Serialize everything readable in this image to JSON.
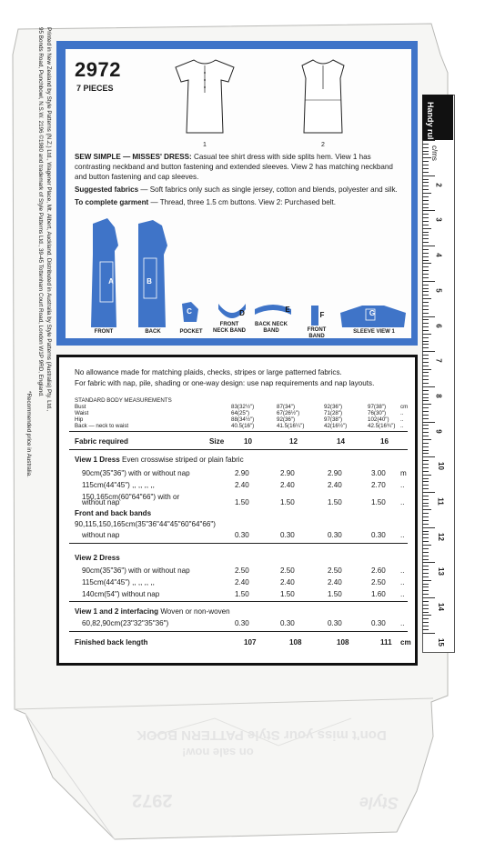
{
  "pattern": {
    "number": "2972",
    "pieces": "7 PIECES"
  },
  "sketches": {
    "view1": "1",
    "view2": "2"
  },
  "description": {
    "heading": "SEW SIMPLE — MISSES' DRESS:",
    "text": "Casual tee shirt dress with side splits hem. View 1 has contrasting neckband and button fastening and extended sleeves. View 2 has matching neckband and button fastening and cap sleeves.",
    "fabrics_label": "Suggested fabrics",
    "fabrics_text": "— Soft fabrics only such as single jersey, cotton and blends, polyester and silk.",
    "garment_label": "To complete garment",
    "garment_text": "— Thread, three 1.5 cm buttons. View 2: Purchased belt."
  },
  "pieces": [
    {
      "letter": "A",
      "label": "FRONT"
    },
    {
      "letter": "B",
      "label": "BACK"
    },
    {
      "letter": "C",
      "label": "POCKET"
    },
    {
      "letter": "D",
      "label": "FRONT NECK BAND"
    },
    {
      "letter": "E",
      "label": "BACK NECK BAND"
    },
    {
      "letter": "F",
      "label": "FRONT BAND"
    },
    {
      "letter": "G",
      "label": "SLEEVE VIEW 1"
    }
  ],
  "notes": {
    "line1": "No allowance made for matching plaids, checks, stripes or large patterned fabrics.",
    "line2": "For fabric with nap, pile, shading or one-way design: use nap requirements and nap layouts."
  },
  "measurements": {
    "heading": "STANDARD BODY MEASUREMENTS",
    "rows": [
      {
        "label": "Bust",
        "values": [
          "83(32½\")",
          "87(34\")",
          "92(36\")",
          "97(38\")"
        ],
        "unit": "cm"
      },
      {
        "label": "Waist",
        "values": [
          "64(25\")",
          "67(26½\")",
          "71(28\")",
          "76(30\")"
        ],
        "unit": ".."
      },
      {
        "label": "Hip",
        "values": [
          "88(34½\")",
          "92(36\")",
          "97(38\")",
          "102(40\")"
        ],
        "unit": ".."
      },
      {
        "label": "Back — neck to waist",
        "values": [
          "40.5(16\")",
          "41.5(16¼\")",
          "42(16½\")",
          "42.5(16¾\")"
        ],
        "unit": ".."
      }
    ]
  },
  "table": {
    "fabric_required": "Fabric required",
    "size_label": "Size",
    "sizes": [
      "10",
      "12",
      "14",
      "16"
    ],
    "view1_heading": "View 1  Dress",
    "view1_sub": "Even crosswise striped or plain fabric",
    "view1_rows": [
      {
        "label": "90cm(35\"36\") with or without nap",
        "values": [
          "2.90",
          "2.90",
          "2.90",
          "3.00"
        ],
        "unit": "m"
      },
      {
        "label": "115cm(44\"45\")  ,,  ,,  ,,  ,,",
        "values": [
          "2.40",
          "2.40",
          "2.40",
          "2.70"
        ],
        "unit": ".."
      },
      {
        "label": "150,165cm(60\"64\"66\") with or",
        "values": [
          "",
          "",
          "",
          ""
        ],
        "unit": ""
      },
      {
        "label": "without nap",
        "values": [
          "1.50",
          "1.50",
          "1.50",
          "1.50"
        ],
        "unit": ".."
      }
    ],
    "bands_heading": "Front and back bands",
    "bands_sub": "90,115,150,165cm(35\"36\"44\"45\"60\"64\"66\")",
    "bands_row": {
      "label": "without nap",
      "values": [
        "0.30",
        "0.30",
        "0.30",
        "0.30"
      ],
      "unit": ".."
    },
    "view2_heading": "View 2  Dress",
    "view2_rows": [
      {
        "label": "90cm(35\"36\") with or without nap",
        "values": [
          "2.50",
          "2.50",
          "2.50",
          "2.60"
        ],
        "unit": ".."
      },
      {
        "label": "115cm(44\"45\")  ,,  ,,  ,,  ,,",
        "values": [
          "2.40",
          "2.40",
          "2.40",
          "2.50"
        ],
        "unit": ".."
      },
      {
        "label": "140cm(54\") without nap",
        "values": [
          "1.50",
          "1.50",
          "1.50",
          "1.60"
        ],
        "unit": ".."
      }
    ],
    "interfacing_heading": "View 1 and 2 interfacing",
    "interfacing_sub": "Woven or non-woven",
    "interfacing_row": {
      "label": "60,82,90cm(23\"32\"35\"36\")",
      "values": [
        "0.30",
        "0.30",
        "0.30",
        "0.30"
      ],
      "unit": ".."
    },
    "finished_label": "Finished back length",
    "finished_values": [
      "107",
      "108",
      "108",
      "111"
    ],
    "finished_unit": "cm"
  },
  "ruler": {
    "title": "Handy rule",
    "unit": "c/ms",
    "numbers": [
      "2",
      "3",
      "4",
      "5",
      "6",
      "7",
      "8",
      "9",
      "10",
      "11",
      "12",
      "13",
      "14",
      "15"
    ]
  },
  "side_text": {
    "line1": "Printed in New Zealand by Style Patterns (N.Z.) Ltd., Wagener Place, Mt. Albert, Auckland. Distributed in Australia by Style Patterns (Australia) Pty. Ltd.,",
    "line2": "95 Bonds Road, Punchbowl, N.S.W. 2196    ©1980 and trademark of Style Patterns Ltd., 39-45 Tottenham Court Road, London W1P 9RD, England.",
    "line3": "*Recommended price in Australia."
  },
  "flap": {
    "line1": "Don't miss your Style PATTERN BOOK",
    "line2": "on sale now!",
    "number": "2972",
    "brand": "Style"
  }
}
